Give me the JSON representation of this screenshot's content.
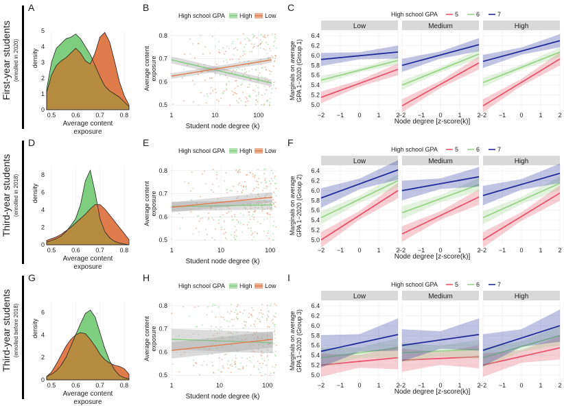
{
  "row_labels": [
    {
      "main": "First-year students",
      "sub": "(enrolled in 2020)"
    },
    {
      "main": "Third-year students",
      "sub": "(enrolled in 2018)"
    },
    {
      "main": "Third-year students",
      "sub": "(enrolled before 2018)"
    }
  ],
  "legend_abc": {
    "title": "High school GPA",
    "items": [
      "High",
      "Low"
    ]
  },
  "legend_cfi": {
    "title": "High school GPA",
    "items": [
      "5",
      "6",
      "7"
    ]
  },
  "colors": {
    "high": "#7fcd7f",
    "low": "#e07c4c",
    "overlap": "#b58b3f",
    "gpa5": "#e8546b",
    "gpa6": "#9ad28a",
    "gpa7": "#1f2a99",
    "strip": "#d9d9d9",
    "grid": "#ececec"
  },
  "chart_data": [
    {
      "id": "A",
      "type": "area",
      "xlabel": "Average content exposure",
      "ylabel": "density",
      "xlim": [
        0.48,
        0.82
      ],
      "ylim": [
        0,
        5
      ],
      "xticks": [
        "0.5",
        "0.6",
        "0.7",
        "0.8"
      ],
      "yticks": [
        "0",
        "1",
        "2",
        "3",
        "4",
        "5"
      ],
      "x": [
        0.48,
        0.5,
        0.52,
        0.54,
        0.56,
        0.58,
        0.6,
        0.62,
        0.64,
        0.66,
        0.68,
        0.7,
        0.72,
        0.74,
        0.76,
        0.78,
        0.8,
        0.82
      ],
      "series": [
        {
          "name": "High",
          "values": [
            1.3,
            3.0,
            3.9,
            4.2,
            4.5,
            4.6,
            4.8,
            4.5,
            4.0,
            3.5,
            2.8,
            2.1,
            1.5,
            1.2,
            1.0,
            0.8,
            0.5,
            0.2
          ]
        },
        {
          "name": "Low",
          "values": [
            1.1,
            2.2,
            2.8,
            3.1,
            3.3,
            3.6,
            3.9,
            3.6,
            3.1,
            2.9,
            3.6,
            4.6,
            4.9,
            4.3,
            3.1,
            1.8,
            0.9,
            0.3
          ]
        }
      ]
    },
    {
      "id": "B",
      "type": "scatter",
      "xlabel": "Student node degree (k)",
      "ylabel": "Average content exposure",
      "xscale": "log",
      "xlim": [
        0.9,
        250
      ],
      "ylim": [
        0.48,
        0.82
      ],
      "xticks": [
        {
          "v": 1,
          "l": "1"
        },
        {
          "v": 10,
          "l": "10"
        },
        {
          "v": 100,
          "l": "100"
        }
      ],
      "yticks": [
        "0.5",
        "0.6",
        "0.7",
        "0.8"
      ],
      "series": [
        {
          "name": "High",
          "line": [
            [
              1,
              0.695
            ],
            [
              200,
              0.595
            ]
          ],
          "band": 0.015
        },
        {
          "name": "Low",
          "line": [
            [
              1,
              0.625
            ],
            [
              200,
              0.695
            ]
          ],
          "band": 0.012
        }
      ]
    },
    {
      "id": "C",
      "type": "line",
      "xlabel": "Node degree [z-score(k)]",
      "ylabel": "Marginals on average GPA 1−2020 (Group 1)",
      "facets": [
        "Low",
        "Medium",
        "High"
      ],
      "xlim": [
        -2,
        2
      ],
      "ylim": [
        4.9,
        6.5
      ],
      "xticks": [
        "−2",
        "−1",
        "0",
        "1",
        "2"
      ],
      "yticks": [
        "5.0",
        "5.2",
        "5.4",
        "5.6",
        "5.8",
        "6.0",
        "6.2",
        "6.4"
      ],
      "panels": [
        [
          {
            "name": "5",
            "y": [
              5.15,
              5.72
            ],
            "band": 0.09
          },
          {
            "name": "6",
            "y": [
              5.5,
              5.9
            ],
            "band": 0.06
          },
          {
            "name": "7",
            "y": [
              5.92,
              6.07
            ],
            "band": 0.1
          }
        ],
        [
          {
            "name": "5",
            "y": [
              4.98,
              5.85
            ],
            "band": 0.1
          },
          {
            "name": "6",
            "y": [
              5.4,
              6.03
            ],
            "band": 0.07
          },
          {
            "name": "7",
            "y": [
              5.8,
              6.22
            ],
            "band": 0.1
          }
        ],
        [
          {
            "name": "5",
            "y": [
              4.98,
              5.93
            ],
            "band": 0.1
          },
          {
            "name": "6",
            "y": [
              5.45,
              6.07
            ],
            "band": 0.07
          },
          {
            "name": "7",
            "y": [
              5.88,
              6.3
            ],
            "band": 0.1
          }
        ]
      ]
    },
    {
      "id": "D",
      "type": "area",
      "xlabel": "Average content exposure",
      "ylabel": "density",
      "xlim": [
        0.48,
        0.82
      ],
      "ylim": [
        0,
        9
      ],
      "xticks": [
        "0.5",
        "0.6",
        "0.7",
        "0.8"
      ],
      "yticks": [
        "0",
        "2",
        "4",
        "6",
        "8"
      ],
      "x": [
        0.48,
        0.5,
        0.52,
        0.54,
        0.56,
        0.58,
        0.6,
        0.62,
        0.64,
        0.66,
        0.68,
        0.7,
        0.72,
        0.74,
        0.76,
        0.78,
        0.8,
        0.82
      ],
      "series": [
        {
          "name": "High",
          "values": [
            0.3,
            0.5,
            0.7,
            1.0,
            1.5,
            2.2,
            3.0,
            4.6,
            7.3,
            8.5,
            6.0,
            3.0,
            1.5,
            0.8,
            0.4,
            0.2,
            0.1,
            0.0
          ]
        },
        {
          "name": "Low",
          "values": [
            0.5,
            0.7,
            0.9,
            1.2,
            1.6,
            2.0,
            2.5,
            3.0,
            3.5,
            4.1,
            4.6,
            4.6,
            4.1,
            3.4,
            2.7,
            2.0,
            1.3,
            0.6
          ]
        }
      ]
    },
    {
      "id": "E",
      "type": "scatter",
      "xlabel": "Student node degree (k)",
      "ylabel": "Average content exposure",
      "xscale": "log",
      "xlim": [
        0.9,
        130
      ],
      "ylim": [
        0.48,
        0.82
      ],
      "xticks": [
        {
          "v": 1,
          "l": "1"
        },
        {
          "v": 10,
          "l": "10"
        },
        {
          "v": 100,
          "l": "100"
        }
      ],
      "yticks": [
        "0.5",
        "0.6",
        "0.7",
        "0.8"
      ],
      "series": [
        {
          "name": "High",
          "line": [
            [
              1,
              0.645
            ],
            [
              110,
              0.652
            ]
          ],
          "band": 0.02
        },
        {
          "name": "Low",
          "line": [
            [
              1,
              0.642
            ],
            [
              110,
              0.685
            ]
          ],
          "band": 0.022
        }
      ]
    },
    {
      "id": "F",
      "type": "line",
      "xlabel": "Node degree [z-score(k)]",
      "ylabel": "Marginals on average GPA 1−2020 (Group 2)",
      "facets": [
        "Low",
        "Medium",
        "High"
      ],
      "xlim": [
        -2,
        2
      ],
      "ylim": [
        4.9,
        6.5
      ],
      "xticks": [
        "−2",
        "−1",
        "0",
        "1",
        "2"
      ],
      "yticks": [
        "5.0",
        "5.2",
        "5.4",
        "5.6",
        "5.8",
        "6.0",
        "6.2",
        "6.4"
      ],
      "panels": [
        [
          {
            "name": "5",
            "y": [
              5.0,
              6.0
            ],
            "band": 0.12
          },
          {
            "name": "6",
            "y": [
              5.45,
              6.2
            ],
            "band": 0.1
          },
          {
            "name": "7",
            "y": [
              5.85,
              6.42
            ],
            "band": 0.15
          }
        ],
        [
          {
            "name": "5",
            "y": [
              5.12,
              5.87
            ],
            "band": 0.12
          },
          {
            "name": "6",
            "y": [
              5.55,
              6.12
            ],
            "band": 0.1
          },
          {
            "name": "7",
            "y": [
              6.0,
              6.28
            ],
            "band": 0.15
          }
        ],
        [
          {
            "name": "5",
            "y": [
              5.0,
              5.95
            ],
            "band": 0.12
          },
          {
            "name": "6",
            "y": [
              5.45,
              6.15
            ],
            "band": 0.1
          },
          {
            "name": "7",
            "y": [
              5.9,
              6.35
            ],
            "band": 0.15
          }
        ]
      ]
    },
    {
      "id": "G",
      "type": "area",
      "xlabel": "Average content exposure",
      "ylabel": "density",
      "xlim": [
        0.48,
        0.82
      ],
      "ylim": [
        0,
        7
      ],
      "xticks": [
        "0.5",
        "0.6",
        "0.7",
        "0.8"
      ],
      "yticks": [
        "0",
        "2",
        "4",
        "6"
      ],
      "x": [
        0.48,
        0.5,
        0.52,
        0.54,
        0.56,
        0.58,
        0.6,
        0.62,
        0.64,
        0.66,
        0.68,
        0.7,
        0.72,
        0.74,
        0.76,
        0.78,
        0.8,
        0.82
      ],
      "series": [
        {
          "name": "High",
          "values": [
            0.3,
            0.5,
            0.8,
            1.3,
            2.0,
            3.0,
            4.0,
            5.0,
            5.9,
            6.2,
            5.6,
            4.2,
            2.8,
            1.7,
            0.9,
            0.4,
            0.2,
            0.1
          ]
        },
        {
          "name": "Low",
          "values": [
            0.3,
            0.7,
            1.4,
            2.2,
            3.0,
            3.6,
            4.0,
            4.2,
            4.1,
            3.6,
            3.0,
            2.3,
            1.8,
            1.5,
            1.3,
            1.2,
            1.0,
            0.5
          ]
        }
      ]
    },
    {
      "id": "H",
      "type": "scatter",
      "xlabel": "Student node degree (k)",
      "ylabel": "Average content exposure",
      "xscale": "log",
      "xlim": [
        0.9,
        150
      ],
      "ylim": [
        0.48,
        0.82
      ],
      "xticks": [
        {
          "v": 1,
          "l": "1"
        },
        {
          "v": 10,
          "l": "10"
        },
        {
          "v": 100,
          "l": "100"
        }
      ],
      "yticks": [
        "0.5",
        "0.6",
        "0.7",
        "0.8"
      ],
      "series": [
        {
          "name": "High",
          "line": [
            [
              1,
              0.655
            ],
            [
              130,
              0.64
            ]
          ],
          "band": 0.045
        },
        {
          "name": "Low",
          "line": [
            [
              1,
              0.607
            ],
            [
              130,
              0.655
            ]
          ],
          "band": 0.035
        }
      ]
    },
    {
      "id": "I",
      "type": "line",
      "xlabel": "Node degree [z-score(k)]",
      "ylabel": "Marginals on average GPA 1−2020 (Group 3)",
      "facets": [
        "Low",
        "Medium",
        "High"
      ],
      "xlim": [
        -2,
        2
      ],
      "ylim": [
        4.9,
        6.5
      ],
      "xticks": [
        "−2",
        "−1",
        "0",
        "1",
        "2"
      ],
      "yticks": [
        "5.0",
        "5.2",
        "5.4",
        "5.6",
        "5.8",
        "6.0",
        "6.2",
        "6.4"
      ],
      "panels": [
        [
          {
            "name": "5",
            "y": [
              5.2,
              5.35
            ],
            "band": 0.18
          },
          {
            "name": "6",
            "y": [
              5.35,
              5.55
            ],
            "band": 0.15
          },
          {
            "name": "7",
            "y": [
              5.48,
              5.82
            ],
            "band": 0.25
          }
        ],
        [
          {
            "name": "5",
            "y": [
              5.3,
              5.37
            ],
            "band": 0.18
          },
          {
            "name": "6",
            "y": [
              5.45,
              5.52
            ],
            "band": 0.15
          },
          {
            "name": "7",
            "y": [
              5.6,
              5.82
            ],
            "band": 0.25
          }
        ],
        [
          {
            "name": "5",
            "y": [
              5.2,
              5.55
            ],
            "band": 0.18
          },
          {
            "name": "6",
            "y": [
              5.35,
              5.8
            ],
            "band": 0.15
          },
          {
            "name": "7",
            "y": [
              5.5,
              6.0
            ],
            "band": 0.25
          }
        ]
      ]
    }
  ]
}
